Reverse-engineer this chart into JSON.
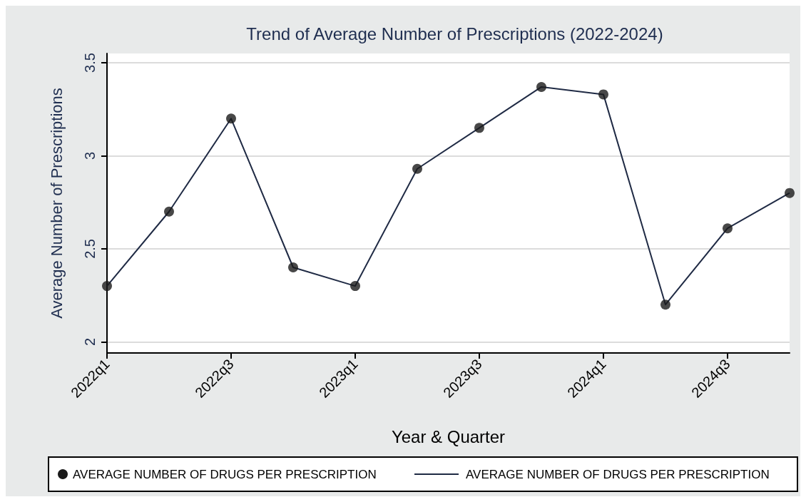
{
  "chart_data": {
    "type": "line",
    "title": "Trend of Average Number of Prescriptions (2022-2024)",
    "xlabel": "Year & Quarter",
    "ylabel": "Average Number of Prescriptions",
    "categories": [
      "2022q1",
      null,
      "2022q3",
      null,
      "2023q1",
      null,
      "2023q3",
      null,
      "2024q1",
      null,
      "2024q3",
      null
    ],
    "series": [
      {
        "type": "scatter",
        "marker": "circle",
        "name": "AVERAGE NUMBER OF DRUGS PER PRESCRIPTION",
        "color": "#1a1a1a",
        "values": [
          2.3,
          2.7,
          3.2,
          2.4,
          2.3,
          2.93,
          3.15,
          3.37,
          3.33,
          2.2,
          2.61,
          2.8
        ]
      },
      {
        "marker": "none",
        "name": "AVERAGE NUMBER OF DRUGS PER PRESCRIPTION",
        "color": "#1f2a44",
        "values": [
          2.3,
          2.7,
          3.2,
          2.4,
          2.3,
          2.93,
          3.15,
          3.37,
          3.33,
          2.2,
          2.61,
          2.8
        ]
      }
    ],
    "ylim": [
      1.94,
      3.55
    ],
    "yticks": [
      2,
      2.5,
      3,
      3.5
    ],
    "grid": "y",
    "legend": "bottom",
    "line_style": "solid"
  }
}
